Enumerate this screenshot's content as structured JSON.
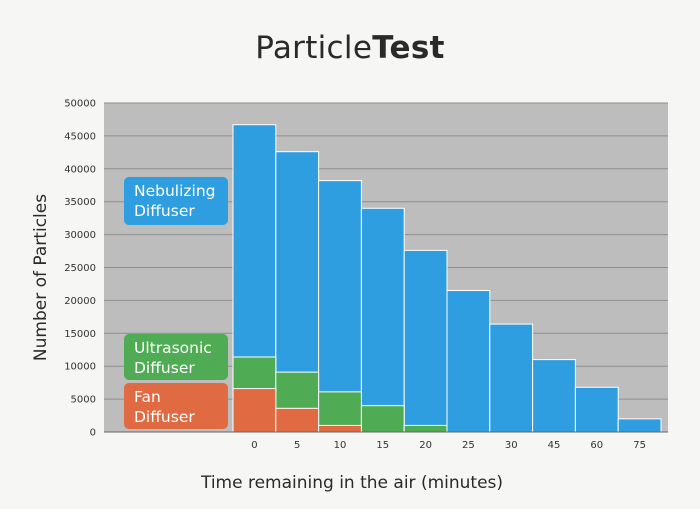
{
  "chart_data": {
    "type": "bar",
    "title_light": "Particle",
    "title_bold": "Test",
    "xlabel": "Time remaining in the air (minutes)",
    "ylabel": "Number of Particles",
    "categories": [
      "0",
      "5",
      "10",
      "15",
      "20",
      "25",
      "30",
      "45",
      "60",
      "75"
    ],
    "ylim": [
      0,
      50000
    ],
    "yticks": [
      0,
      5000,
      10000,
      15000,
      20000,
      25000,
      30000,
      35000,
      40000,
      45000,
      50000
    ],
    "grid": true,
    "legend_position": "left, stacked inside plot area",
    "overlay": true,
    "series": [
      {
        "name": "Nebulizing Diffuser",
        "label_lines": [
          "Nebulizing",
          "Diffuser"
        ],
        "color": "#2f9ee0",
        "values": [
          46700,
          42600,
          38200,
          34000,
          27600,
          21500,
          16400,
          11000,
          6800,
          2000
        ]
      },
      {
        "name": "Ultrasonic Diffuser",
        "label_lines": [
          "Ultrasonic",
          "Diffuser"
        ],
        "color": "#4fac55",
        "values": [
          11400,
          9100,
          6100,
          4000,
          1000,
          0,
          0,
          0,
          0,
          0
        ]
      },
      {
        "name": "Fan Diffuser",
        "label_lines": [
          "Fan",
          "Diffuser"
        ],
        "color": "#e06a42",
        "values": [
          6600,
          3600,
          1000,
          0,
          0,
          0,
          0,
          0,
          0,
          0
        ]
      }
    ]
  }
}
